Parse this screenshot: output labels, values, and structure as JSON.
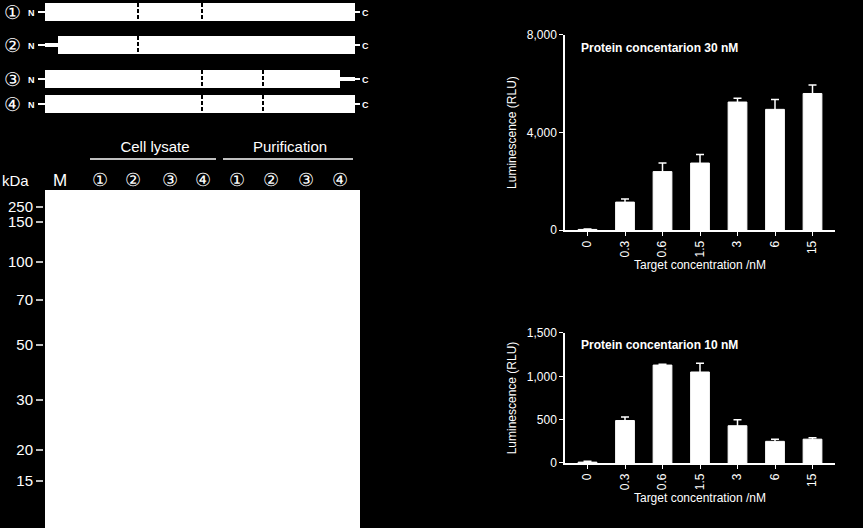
{
  "chart_data": [
    {
      "type": "bar",
      "title": "Protein concentarion 30 nM",
      "x_label": "Target concentration /nM",
      "y_label": "Luminescence (RLU)",
      "categories": [
        "0",
        "0.3",
        "0.6",
        "1.5",
        "3",
        "6",
        "15"
      ],
      "values": [
        30,
        1150,
        2400,
        2750,
        5250,
        4950,
        5600
      ],
      "errors": [
        20,
        130,
        350,
        350,
        150,
        400,
        350
      ],
      "color": "#ffffff",
      "ylim": [
        0,
        8000
      ],
      "yticks": [
        0,
        {
          "value": 4000,
          "label": "4,000"
        },
        {
          "value": 8000,
          "label": "8,000"
        }
      ],
      "grid": false
    },
    {
      "type": "bar",
      "title": "Protein concentarion 10 nM",
      "x_label": "Target concentration /nM",
      "y_label": "Luminescence (RLU)",
      "categories": [
        "0",
        "0.3",
        "0.6",
        "1.5",
        "3",
        "6",
        "15"
      ],
      "values": [
        10,
        490,
        1130,
        1050,
        430,
        250,
        275
      ],
      "errors": [
        10,
        40,
        10,
        100,
        70,
        25,
        15
      ],
      "color": "#ffffff",
      "ylim": [
        0,
        1500
      ],
      "yticks": [
        0,
        500,
        {
          "value": 1000,
          "label": "1,000"
        },
        {
          "value": 1500,
          "label": "1,500"
        }
      ],
      "grid": false
    }
  ],
  "diagram": {
    "constructs": [
      {
        "label": "①",
        "n": "N",
        "c": "C"
      },
      {
        "label": "②",
        "n": "N",
        "c": "C"
      },
      {
        "label": "③",
        "n": "N",
        "c": "C"
      },
      {
        "label": "④",
        "n": "N",
        "c": "C"
      }
    ],
    "gel": {
      "unit": "kDa",
      "marker_lane": "M",
      "groups": [
        {
          "label": "Cell lysate",
          "lanes": [
            "①",
            "②",
            "③",
            "④"
          ]
        },
        {
          "label": "Purification",
          "lanes": [
            "①",
            "②",
            "③",
            "④"
          ]
        }
      ],
      "markers": [
        250,
        150,
        100,
        70,
        50,
        30,
        20,
        15
      ]
    }
  }
}
